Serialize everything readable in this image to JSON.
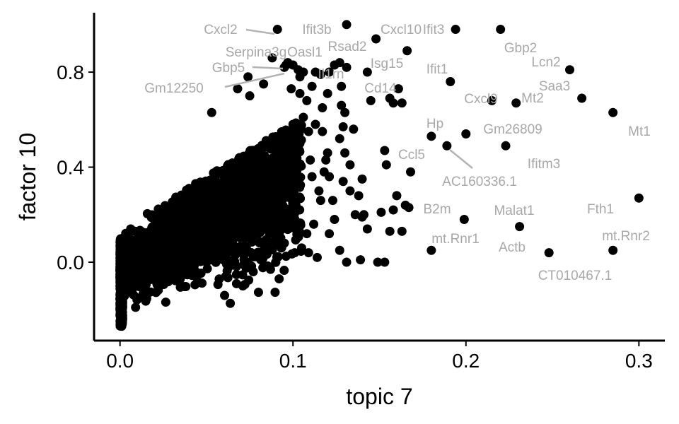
{
  "chart_data": {
    "type": "scatter",
    "title": "",
    "xlabel": "topic 7",
    "ylabel": "factor 10",
    "xlim": [
      -0.015,
      0.315
    ],
    "ylim": [
      -0.33,
      1.05
    ],
    "xticks": [
      {
        "value": 0.0,
        "label": "0.0"
      },
      {
        "value": 0.1,
        "label": "0.1"
      },
      {
        "value": 0.2,
        "label": "0.2"
      },
      {
        "value": 0.3,
        "label": "0.3"
      }
    ],
    "yticks": [
      {
        "value": 0.0,
        "label": "0.0"
      },
      {
        "value": 0.4,
        "label": "0.4"
      },
      {
        "value": 0.8,
        "label": "0.8"
      }
    ],
    "grid": false,
    "point_color": "#000000",
    "label_color": "#a8a8a8",
    "labeled_points": [
      {
        "label": "Cxcl2",
        "x": 0.091,
        "y": 0.98
      },
      {
        "label": "Ifit3b",
        "x": 0.131,
        "y": 1.0
      },
      {
        "label": "Cxcl10",
        "x": 0.166,
        "y": 0.89
      },
      {
        "label": "Ifit3",
        "x": 0.194,
        "y": 0.98
      },
      {
        "label": "Gbp2",
        "x": 0.22,
        "y": 0.98
      },
      {
        "label": "Serpina3g",
        "x": 0.097,
        "y": 0.84
      },
      {
        "label": "Oasl1",
        "x": 0.103,
        "y": 0.81
      },
      {
        "label": "Rsad2",
        "x": 0.148,
        "y": 0.94
      },
      {
        "label": "Gbp5",
        "x": 0.096,
        "y": 0.83
      },
      {
        "label": "Il1rn",
        "x": 0.113,
        "y": 0.8
      },
      {
        "label": "Isg15",
        "x": 0.143,
        "y": 0.8
      },
      {
        "label": "Ifit1",
        "x": 0.191,
        "y": 0.76
      },
      {
        "label": "Lcn2",
        "x": 0.26,
        "y": 0.81
      },
      {
        "label": "Gm12250",
        "x": 0.095,
        "y": 0.82
      },
      {
        "label": "Cd14",
        "x": 0.156,
        "y": 0.69
      },
      {
        "label": "Saa3",
        "x": 0.267,
        "y": 0.69
      },
      {
        "label": "Mt2",
        "x": 0.229,
        "y": 0.67
      },
      {
        "label": "Cxcl9",
        "x": 0.215,
        "y": 0.68
      },
      {
        "label": "Mt1",
        "x": 0.285,
        "y": 0.63
      },
      {
        "label": "Hp",
        "x": 0.18,
        "y": 0.53
      },
      {
        "label": "Gm26809",
        "x": 0.2,
        "y": 0.54
      },
      {
        "label": "AC160336.1",
        "x": 0.189,
        "y": 0.49
      },
      {
        "label": "Ifitm3",
        "x": 0.223,
        "y": 0.49
      },
      {
        "label": "Ccl5",
        "x": 0.153,
        "y": 0.47
      },
      {
        "label": "B2m",
        "x": 0.167,
        "y": 0.23
      },
      {
        "label": "Malat1",
        "x": 0.199,
        "y": 0.18
      },
      {
        "label": "Fth1",
        "x": 0.3,
        "y": 0.27
      },
      {
        "label": "mt.Rnr1",
        "x": 0.18,
        "y": 0.05
      },
      {
        "label": "Actb",
        "x": 0.231,
        "y": 0.15
      },
      {
        "label": "mt.Rnr2",
        "x": 0.285,
        "y": 0.05
      },
      {
        "label": "CT010467.1",
        "x": 0.248,
        "y": 0.04
      }
    ],
    "extra_points": [
      [
        0.053,
        0.63
      ],
      [
        0.068,
        0.73
      ],
      [
        0.074,
        0.78
      ],
      [
        0.075,
        0.7
      ],
      [
        0.083,
        0.75
      ],
      [
        0.088,
        0.86
      ],
      [
        0.1,
        0.83
      ],
      [
        0.104,
        0.78
      ],
      [
        0.106,
        0.8
      ],
      [
        0.111,
        0.74
      ],
      [
        0.116,
        0.79
      ],
      [
        0.121,
        0.8
      ],
      [
        0.124,
        0.83
      ],
      [
        0.127,
        0.84
      ],
      [
        0.128,
        0.74
      ],
      [
        0.128,
        0.66
      ],
      [
        0.13,
        0.63
      ],
      [
        0.129,
        0.57
      ],
      [
        0.13,
        0.46
      ],
      [
        0.131,
        0.82
      ],
      [
        0.14,
        0.35
      ],
      [
        0.138,
        0.28
      ],
      [
        0.136,
        0.2
      ],
      [
        0.141,
        0.2
      ],
      [
        0.143,
        0.14
      ],
      [
        0.145,
        0.68
      ],
      [
        0.158,
        0.67
      ],
      [
        0.161,
        0.73
      ],
      [
        0.163,
        0.67
      ],
      [
        0.12,
        0.46
      ],
      [
        0.117,
        0.55
      ],
      [
        0.154,
        0.41
      ],
      [
        0.158,
        0.22
      ],
      [
        0.156,
        0.13
      ],
      [
        0.151,
        0.21
      ],
      [
        0.153,
        0.0
      ],
      [
        0.165,
        0.24
      ],
      [
        0.168,
        0.38
      ],
      [
        0.14,
        0.19
      ],
      [
        0.16,
        0.28
      ],
      [
        0.112,
        0.16
      ],
      [
        0.108,
        0.12
      ],
      [
        0.105,
        0.06
      ],
      [
        0.101,
        0.04
      ],
      [
        0.121,
        0.12
      ],
      [
        0.124,
        0.18
      ],
      [
        0.127,
        0.05
      ],
      [
        0.131,
        0.0
      ],
      [
        0.133,
        0.3
      ],
      [
        0.115,
        0.3
      ],
      [
        0.111,
        0.36
      ],
      [
        0.118,
        0.38
      ],
      [
        0.129,
        0.34
      ],
      [
        0.127,
        0.52
      ],
      [
        0.123,
        0.26
      ],
      [
        0.116,
        0.26
      ],
      [
        0.135,
        0.56
      ],
      [
        0.133,
        0.41
      ],
      [
        0.109,
        0.04
      ],
      [
        0.114,
        0.02
      ],
      [
        0.095,
        0.08
      ],
      [
        0.09,
        0.0
      ],
      [
        0.087,
        -0.03
      ],
      [
        0.092,
        -0.07
      ],
      [
        0.077,
        -0.04
      ],
      [
        0.071,
        -0.1
      ],
      [
        0.074,
        0.0
      ],
      [
        0.009,
        -0.19
      ],
      [
        0.109,
        0.55
      ],
      [
        0.104,
        0.5
      ],
      [
        0.11,
        0.43
      ],
      [
        0.121,
        0.36
      ],
      [
        0.108,
        0.68
      ],
      [
        0.1,
        0.58
      ],
      [
        0.097,
        0.51
      ],
      [
        0.106,
        0.61
      ],
      [
        0.104,
        0.71
      ],
      [
        0.099,
        0.73
      ],
      [
        0.113,
        0.58
      ],
      [
        0.117,
        0.65
      ],
      [
        0.12,
        0.71
      ],
      [
        0.119,
        0.43
      ],
      [
        0.149,
        0.0
      ],
      [
        0.163,
        0.13
      ],
      [
        0.139,
        0.01
      ]
    ]
  }
}
